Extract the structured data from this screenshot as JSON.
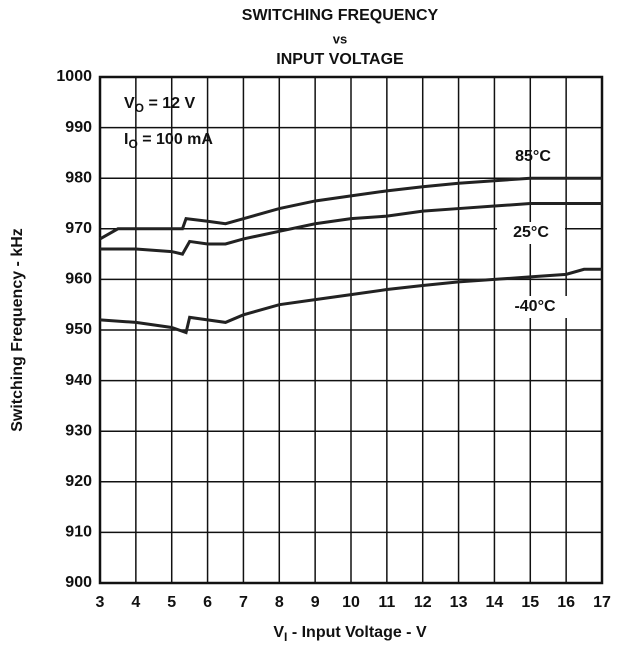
{
  "chart_data": {
    "type": "line",
    "title": [
      "SWITCHING FREQUENCY",
      "vs",
      "INPUT VOLTAGE"
    ],
    "x_label": {
      "main": "V",
      "sub": "I",
      "rest": " - Input Voltage - V"
    },
    "y_label": "Switching Frequency - kHz",
    "annotations": [
      {
        "main": "V",
        "sub": "O",
        "rest": " = 12 V"
      },
      {
        "main": "I",
        "sub": "O",
        "rest": " = 100 mA"
      }
    ],
    "xlim": [
      3,
      17
    ],
    "xticks": [
      3,
      4,
      5,
      6,
      7,
      8,
      9,
      10,
      11,
      12,
      13,
      14,
      15,
      16,
      17
    ],
    "ylim": [
      900,
      1000
    ],
    "yticks": [
      900,
      910,
      920,
      930,
      940,
      950,
      960,
      970,
      980,
      990,
      1000
    ],
    "grid": true,
    "series": [
      {
        "name": "85°C",
        "color": "#222",
        "x": [
          3,
          3.5,
          5.3,
          5.4,
          6,
          6.5,
          7,
          8,
          9,
          10,
          11,
          12,
          13,
          14,
          15,
          17
        ],
        "values": [
          968,
          970,
          970,
          972,
          971.5,
          971,
          972,
          974,
          975.5,
          976.5,
          977.5,
          978.3,
          979,
          979.5,
          980,
          980
        ]
      },
      {
        "name": "25°C",
        "color": "#222",
        "x": [
          3,
          4,
          5,
          5.3,
          5.5,
          6,
          6.5,
          7,
          8,
          9,
          10,
          11,
          12,
          13,
          14,
          15,
          17
        ],
        "values": [
          966,
          966,
          965.5,
          965,
          967.5,
          967,
          967,
          968,
          969.5,
          971,
          972,
          972.5,
          973.5,
          974,
          974.5,
          975,
          975
        ]
      },
      {
        "name": "-40°C",
        "color": "#222",
        "x": [
          3,
          4,
          5,
          5.4,
          5.5,
          6,
          6.5,
          7,
          8,
          9,
          10,
          11,
          12,
          13,
          14,
          15,
          16,
          16.5,
          17
        ],
        "values": [
          952,
          951.5,
          950.5,
          949.5,
          952.5,
          952,
          951.5,
          953,
          955,
          956,
          957,
          958,
          958.8,
          959.5,
          960,
          960.5,
          961,
          962,
          962
        ]
      }
    ]
  }
}
